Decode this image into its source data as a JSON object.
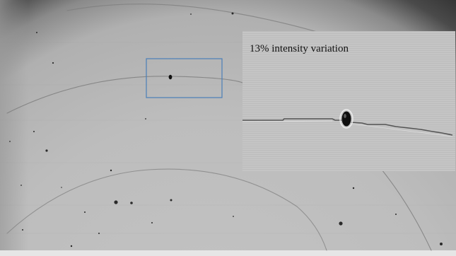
{
  "inset": {
    "caption": "13% intensity variation"
  },
  "colors": {
    "background_gray": "#bdbdbd",
    "vignette_dark": "#3a3a3a",
    "selection_box": "#4a7fb8",
    "inset_gray": "#c4c4c4",
    "particle": "#1a1a1a"
  }
}
